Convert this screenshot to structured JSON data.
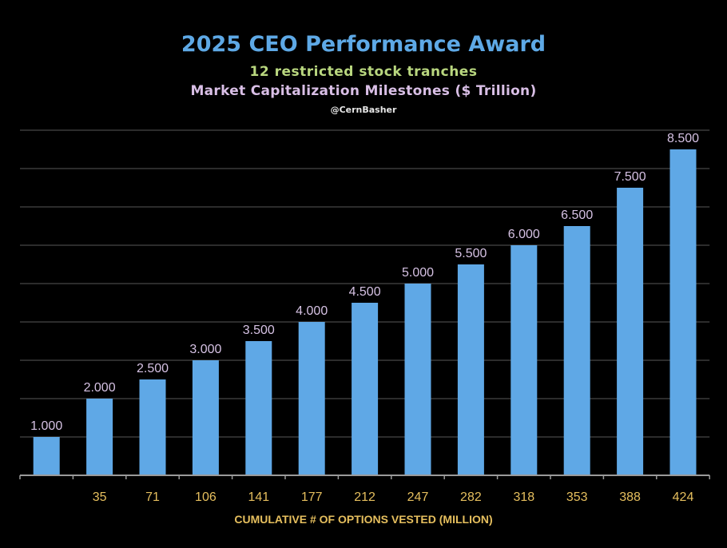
{
  "chart_data": {
    "type": "bar",
    "title": "2025 CEO Performance Award",
    "subtitle": "12 restricted stock tranches",
    "subtitle2": "Market Capitalization Milestones ($ Trillion)",
    "credit": "@CernBasher",
    "xlabel": "CUMULATIVE # OF OPTIONS VESTED (MILLION)",
    "ylabel": "",
    "categories": [
      "",
      "35",
      "71",
      "106",
      "141",
      "177",
      "212",
      "247",
      "282",
      "318",
      "353",
      "388",
      "424"
    ],
    "values": [
      1.0,
      2.0,
      2.5,
      3.0,
      3.5,
      4.0,
      4.5,
      5.0,
      5.5,
      6.0,
      6.5,
      7.5,
      8.5
    ],
    "data_labels": [
      "1.000",
      "2.000",
      "2.500",
      "3.000",
      "3.500",
      "4.000",
      "4.500",
      "5.000",
      "5.500",
      "6.000",
      "6.500",
      "7.500",
      "8.500"
    ],
    "ylim": [
      0,
      9
    ],
    "grid": true,
    "colors": {
      "bar": "#5fa8e6",
      "data_label": "#d6c2e4",
      "tick_label": "#e6bf5e",
      "title": "#5ea9e6",
      "subtitle": "#b9d77f",
      "subtitle2": "#d9bfe6",
      "background": "#000000",
      "grid": "#3a3a3a"
    }
  }
}
